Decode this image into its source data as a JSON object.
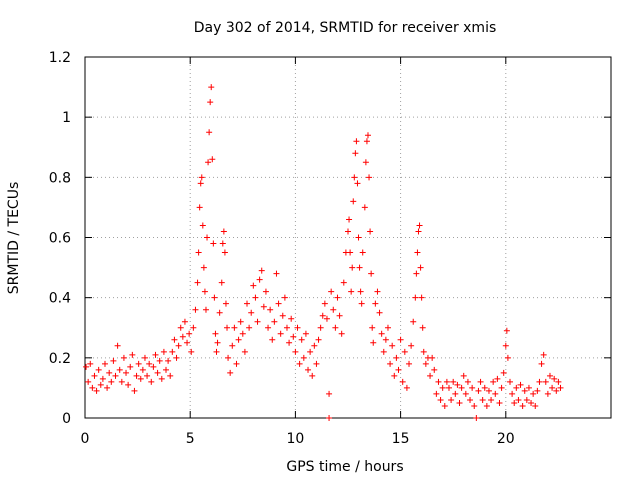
{
  "chart_data": {
    "type": "scatter",
    "title": "Day 302 of 2014, SRMTID for receiver xmis",
    "xlabel": "GPS time / hours",
    "ylabel": "SRMTID / TECUs",
    "xlim": [
      0,
      25
    ],
    "ylim": [
      0,
      1.2
    ],
    "grid": true,
    "marker": "plus",
    "colors": {
      "series": "#ff0000",
      "grid": "#a0a0a0",
      "axis": "#000000"
    },
    "x_ticks": [
      {
        "value": 0,
        "label": "0"
      },
      {
        "value": 5,
        "label": "5"
      },
      {
        "value": 10,
        "label": "10"
      },
      {
        "value": 15,
        "label": "15"
      },
      {
        "value": 20,
        "label": "20"
      }
    ],
    "y_ticks": [
      {
        "value": 0,
        "label": "0"
      },
      {
        "value": 0.2,
        "label": "0.2"
      },
      {
        "value": 0.4,
        "label": "0.4"
      },
      {
        "value": 0.6,
        "label": "0.6"
      },
      {
        "value": 0.8,
        "label": "0.8"
      },
      {
        "value": 1.0,
        "label": "1"
      },
      {
        "value": 1.2,
        "label": "1.2"
      }
    ],
    "series": [
      {
        "name": "SRMTID",
        "points": [
          [
            0.05,
            0.17
          ],
          [
            0.15,
            0.12
          ],
          [
            0.25,
            0.18
          ],
          [
            0.35,
            0.1
          ],
          [
            0.45,
            0.14
          ],
          [
            0.55,
            0.09
          ],
          [
            0.65,
            0.16
          ],
          [
            0.75,
            0.11
          ],
          [
            0.85,
            0.13
          ],
          [
            0.95,
            0.18
          ],
          [
            1.05,
            0.1
          ],
          [
            1.15,
            0.15
          ],
          [
            1.25,
            0.12
          ],
          [
            1.35,
            0.19
          ],
          [
            1.45,
            0.14
          ],
          [
            1.55,
            0.24
          ],
          [
            1.65,
            0.16
          ],
          [
            1.75,
            0.12
          ],
          [
            1.85,
            0.2
          ],
          [
            1.95,
            0.15
          ],
          [
            2.05,
            0.11
          ],
          [
            2.15,
            0.17
          ],
          [
            2.25,
            0.21
          ],
          [
            2.35,
            0.09
          ],
          [
            2.45,
            0.14
          ],
          [
            2.55,
            0.18
          ],
          [
            2.65,
            0.13
          ],
          [
            2.75,
            0.16
          ],
          [
            2.85,
            0.2
          ],
          [
            2.95,
            0.14
          ],
          [
            3.05,
            0.18
          ],
          [
            3.15,
            0.12
          ],
          [
            3.25,
            0.17
          ],
          [
            3.35,
            0.21
          ],
          [
            3.45,
            0.15
          ],
          [
            3.55,
            0.19
          ],
          [
            3.65,
            0.13
          ],
          [
            3.75,
            0.22
          ],
          [
            3.85,
            0.16
          ],
          [
            3.95,
            0.19
          ],
          [
            4.05,
            0.14
          ],
          [
            4.15,
            0.22
          ],
          [
            4.25,
            0.26
          ],
          [
            4.35,
            0.2
          ],
          [
            4.45,
            0.24
          ],
          [
            4.55,
            0.3
          ],
          [
            4.65,
            0.27
          ],
          [
            4.75,
            0.32
          ],
          [
            4.85,
            0.25
          ],
          [
            4.95,
            0.28
          ],
          [
            5.05,
            0.22
          ],
          [
            5.15,
            0.3
          ],
          [
            5.25,
            0.36
          ],
          [
            5.35,
            0.45
          ],
          [
            5.4,
            0.55
          ],
          [
            5.45,
            0.7
          ],
          [
            5.5,
            0.78
          ],
          [
            5.55,
            0.8
          ],
          [
            5.6,
            0.64
          ],
          [
            5.65,
            0.5
          ],
          [
            5.7,
            0.42
          ],
          [
            5.75,
            0.36
          ],
          [
            5.8,
            0.6
          ],
          [
            5.85,
            0.85
          ],
          [
            5.9,
            0.95
          ],
          [
            5.95,
            1.05
          ],
          [
            6.0,
            1.1
          ],
          [
            6.05,
            0.86
          ],
          [
            6.1,
            0.58
          ],
          [
            6.15,
            0.4
          ],
          [
            6.2,
            0.28
          ],
          [
            6.25,
            0.22
          ],
          [
            6.3,
            0.25
          ],
          [
            6.4,
            0.35
          ],
          [
            6.5,
            0.45
          ],
          [
            6.55,
            0.58
          ],
          [
            6.6,
            0.62
          ],
          [
            6.65,
            0.55
          ],
          [
            6.7,
            0.38
          ],
          [
            6.75,
            0.3
          ],
          [
            6.8,
            0.2
          ],
          [
            6.9,
            0.15
          ],
          [
            7.0,
            0.24
          ],
          [
            7.1,
            0.3
          ],
          [
            7.2,
            0.18
          ],
          [
            7.3,
            0.26
          ],
          [
            7.4,
            0.32
          ],
          [
            7.5,
            0.28
          ],
          [
            7.6,
            0.22
          ],
          [
            7.7,
            0.38
          ],
          [
            7.8,
            0.3
          ],
          [
            7.9,
            0.35
          ],
          [
            8.0,
            0.44
          ],
          [
            8.1,
            0.4
          ],
          [
            8.2,
            0.32
          ],
          [
            8.3,
            0.46
          ],
          [
            8.4,
            0.49
          ],
          [
            8.5,
            0.37
          ],
          [
            8.6,
            0.42
          ],
          [
            8.7,
            0.3
          ],
          [
            8.8,
            0.36
          ],
          [
            8.9,
            0.26
          ],
          [
            9.0,
            0.32
          ],
          [
            9.1,
            0.48
          ],
          [
            9.2,
            0.38
          ],
          [
            9.3,
            0.28
          ],
          [
            9.4,
            0.34
          ],
          [
            9.5,
            0.4
          ],
          [
            9.6,
            0.3
          ],
          [
            9.7,
            0.25
          ],
          [
            9.8,
            0.33
          ],
          [
            9.9,
            0.27
          ],
          [
            10.0,
            0.22
          ],
          [
            10.1,
            0.3
          ],
          [
            10.2,
            0.18
          ],
          [
            10.3,
            0.26
          ],
          [
            10.4,
            0.2
          ],
          [
            10.5,
            0.28
          ],
          [
            10.6,
            0.16
          ],
          [
            10.7,
            0.22
          ],
          [
            10.8,
            0.14
          ],
          [
            10.9,
            0.24
          ],
          [
            11.0,
            0.18
          ],
          [
            11.1,
            0.26
          ],
          [
            11.2,
            0.3
          ],
          [
            11.3,
            0.34
          ],
          [
            11.4,
            0.38
          ],
          [
            11.5,
            0.33
          ],
          [
            11.6,
            0.08
          ],
          [
            11.7,
            0.42
          ],
          [
            11.8,
            0.36
          ],
          [
            11.9,
            0.3
          ],
          [
            12.0,
            0.4
          ],
          [
            12.1,
            0.34
          ],
          [
            12.2,
            0.28
          ],
          [
            12.3,
            0.45
          ],
          [
            12.4,
            0.55
          ],
          [
            12.5,
            0.62
          ],
          [
            12.55,
            0.66
          ],
          [
            12.6,
            0.55
          ],
          [
            12.65,
            0.42
          ],
          [
            12.7,
            0.5
          ],
          [
            12.75,
            0.72
          ],
          [
            12.8,
            0.8
          ],
          [
            12.85,
            0.88
          ],
          [
            12.9,
            0.92
          ],
          [
            12.95,
            0.78
          ],
          [
            13.0,
            0.6
          ],
          [
            13.05,
            0.5
          ],
          [
            13.1,
            0.42
          ],
          [
            13.15,
            0.38
          ],
          [
            13.2,
            0.55
          ],
          [
            13.3,
            0.7
          ],
          [
            13.35,
            0.85
          ],
          [
            13.4,
            0.92
          ],
          [
            13.45,
            0.94
          ],
          [
            13.5,
            0.8
          ],
          [
            13.55,
            0.62
          ],
          [
            13.6,
            0.48
          ],
          [
            13.65,
            0.3
          ],
          [
            13.7,
            0.25
          ],
          [
            13.8,
            0.38
          ],
          [
            13.9,
            0.42
          ],
          [
            14.0,
            0.35
          ],
          [
            14.1,
            0.28
          ],
          [
            14.2,
            0.22
          ],
          [
            14.3,
            0.26
          ],
          [
            14.4,
            0.3
          ],
          [
            14.5,
            0.18
          ],
          [
            14.6,
            0.24
          ],
          [
            14.7,
            0.14
          ],
          [
            14.8,
            0.2
          ],
          [
            14.9,
            0.16
          ],
          [
            15.0,
            0.26
          ],
          [
            15.1,
            0.12
          ],
          [
            15.2,
            0.22
          ],
          [
            15.3,
            0.1
          ],
          [
            15.4,
            0.18
          ],
          [
            15.5,
            0.24
          ],
          [
            15.6,
            0.32
          ],
          [
            15.7,
            0.4
          ],
          [
            15.75,
            0.48
          ],
          [
            15.8,
            0.55
          ],
          [
            15.85,
            0.62
          ],
          [
            15.9,
            0.64
          ],
          [
            15.95,
            0.5
          ],
          [
            16.0,
            0.4
          ],
          [
            16.05,
            0.3
          ],
          [
            16.1,
            0.22
          ],
          [
            16.2,
            0.18
          ],
          [
            16.3,
            0.2
          ],
          [
            16.4,
            0.14
          ],
          [
            16.5,
            0.2
          ],
          [
            16.6,
            0.16
          ],
          [
            16.7,
            0.08
          ],
          [
            16.8,
            0.12
          ],
          [
            16.9,
            0.06
          ],
          [
            17.0,
            0.1
          ],
          [
            17.1,
            0.04
          ],
          [
            17.2,
            0.12
          ],
          [
            17.3,
            0.1
          ],
          [
            17.4,
            0.06
          ],
          [
            17.5,
            0.12
          ],
          [
            17.6,
            0.08
          ],
          [
            17.7,
            0.11
          ],
          [
            17.8,
            0.05
          ],
          [
            17.9,
            0.1
          ],
          [
            18.0,
            0.14
          ],
          [
            18.1,
            0.08
          ],
          [
            18.2,
            0.12
          ],
          [
            18.3,
            0.06
          ],
          [
            18.4,
            0.1
          ],
          [
            18.5,
            0.04
          ],
          [
            18.6,
            0.0
          ],
          [
            18.7,
            0.09
          ],
          [
            18.8,
            0.12
          ],
          [
            18.9,
            0.06
          ],
          [
            19.0,
            0.1
          ],
          [
            19.1,
            0.04
          ],
          [
            19.2,
            0.09
          ],
          [
            19.3,
            0.06
          ],
          [
            19.4,
            0.12
          ],
          [
            19.5,
            0.08
          ],
          [
            19.6,
            0.13
          ],
          [
            19.7,
            0.05
          ],
          [
            19.8,
            0.1
          ],
          [
            19.9,
            0.15
          ],
          [
            20.0,
            0.24
          ],
          [
            20.05,
            0.29
          ],
          [
            20.1,
            0.2
          ],
          [
            20.2,
            0.12
          ],
          [
            20.3,
            0.08
          ],
          [
            20.4,
            0.05
          ],
          [
            20.5,
            0.1
          ],
          [
            20.6,
            0.06
          ],
          [
            20.7,
            0.11
          ],
          [
            20.8,
            0.04
          ],
          [
            20.9,
            0.09
          ],
          [
            21.0,
            0.06
          ],
          [
            21.1,
            0.1
          ],
          [
            21.2,
            0.05
          ],
          [
            21.3,
            0.08
          ],
          [
            21.4,
            0.04
          ],
          [
            21.5,
            0.09
          ],
          [
            21.6,
            0.12
          ],
          [
            21.7,
            0.18
          ],
          [
            21.8,
            0.21
          ],
          [
            21.9,
            0.12
          ],
          [
            22.0,
            0.08
          ],
          [
            22.1,
            0.14
          ],
          [
            22.2,
            0.1
          ],
          [
            22.3,
            0.13
          ],
          [
            22.4,
            0.09
          ],
          [
            22.5,
            0.12
          ],
          [
            22.6,
            0.1
          ],
          [
            11.6,
            0.0
          ]
        ]
      }
    ]
  }
}
